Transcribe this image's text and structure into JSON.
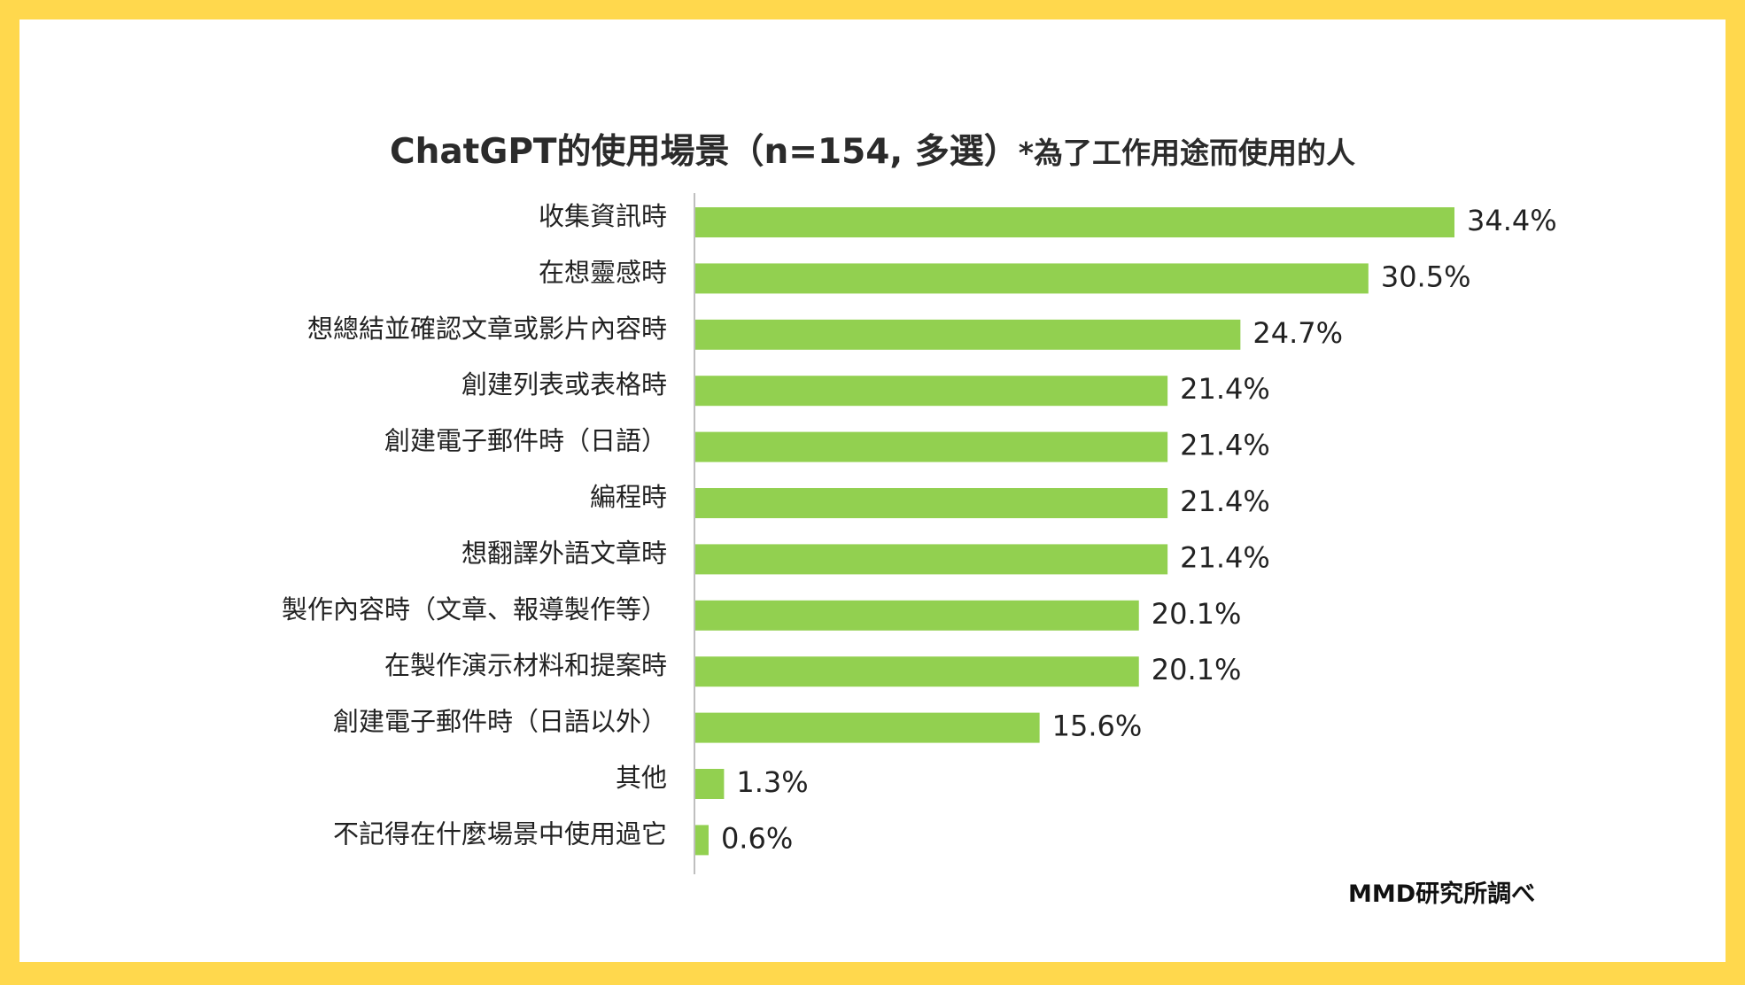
{
  "chart_data": {
    "type": "bar",
    "orientation": "horizontal",
    "title": "ChatGPT的使用場景（n=154, 多選）",
    "subtitle": "*為了工作用途而使用的人",
    "categories": [
      "收集資訊時",
      "在想靈感時",
      "想總結並確認文章或影片內容時",
      "創建列表或表格時",
      "創建電子郵件時（日語）",
      "編程時",
      "想翻譯外語文章時",
      "製作內容時（文章、報導製作等）",
      "在製作演示材料和提案時",
      "創建電子郵件時（日語以外）",
      "其他",
      "不記得在什麼場景中使用過它"
    ],
    "values": [
      34.4,
      30.5,
      24.7,
      21.4,
      21.4,
      21.4,
      21.4,
      20.1,
      20.1,
      15.6,
      1.3,
      0.6
    ],
    "value_labels": [
      "34.4%",
      "30.5%",
      "24.7%",
      "21.4%",
      "21.4%",
      "21.4%",
      "21.4%",
      "20.1%",
      "20.1%",
      "15.6%",
      "1.3%",
      "0.6%"
    ],
    "xlim": [
      0,
      40
    ],
    "unit": "%",
    "bar_color": "#92D050",
    "grid": false,
    "legend": "none"
  },
  "source": "MMD研究所調べ",
  "colors": {
    "frame": "#FFD84D",
    "background": "#FFFFFF"
  }
}
